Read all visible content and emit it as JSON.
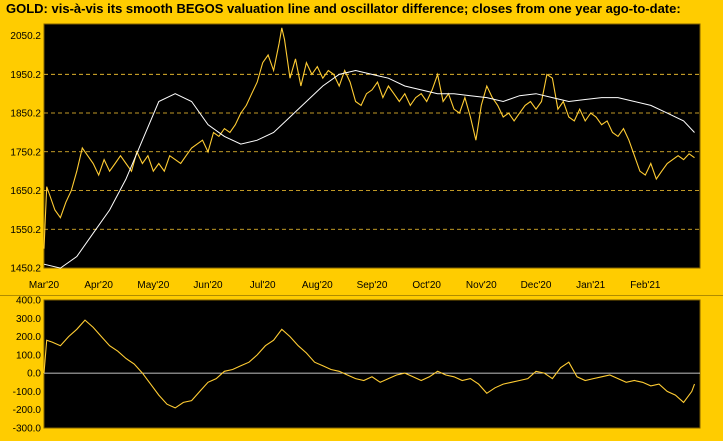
{
  "title": "GOLD:  vis-à-vis its smooth BEGOS valuation line and oscillator difference; closes from one year ago-to-date:",
  "colors": {
    "background": "#FFCC00",
    "plot_bg": "#000000",
    "price_line": "#FFCC33",
    "valuation_line": "#FFFFFF",
    "grid": "#FFCC33"
  },
  "chart_data": [
    {
      "type": "line",
      "name": "price-panel",
      "ylim": [
        1450.2,
        2080
      ],
      "yticks": [
        2050.2,
        1950.2,
        1850.2,
        1750.2,
        1650.2,
        1550.2,
        1450.2
      ],
      "ytick_labels": [
        "2050.2",
        "1950.2",
        "1850.2",
        "1750.2",
        "1650.2",
        "1550.2",
        "1450.2"
      ],
      "xlim": [
        0,
        12.0
      ],
      "xtick_labels": [
        "Mar'20",
        "Apr'20",
        "May'20",
        "Jun'20",
        "Jul'20",
        "Aug'20",
        "Sep'20",
        "Oct'20",
        "Nov'20",
        "Dec'20",
        "Jan'21",
        "Feb'21"
      ],
      "grid": "horizontal dashed",
      "series": [
        {
          "role": "price",
          "x": [
            0,
            0.05,
            0.1,
            0.2,
            0.3,
            0.4,
            0.5,
            0.6,
            0.7,
            0.8,
            0.9,
            1.0,
            1.1,
            1.2,
            1.3,
            1.4,
            1.5,
            1.6,
            1.7,
            1.8,
            1.9,
            2.0,
            2.1,
            2.2,
            2.3,
            2.4,
            2.5,
            2.6,
            2.7,
            2.8,
            2.9,
            3.0,
            3.1,
            3.2,
            3.3,
            3.4,
            3.5,
            3.6,
            3.7,
            3.8,
            3.9,
            4.0,
            4.1,
            4.2,
            4.3,
            4.35,
            4.4,
            4.5,
            4.6,
            4.7,
            4.8,
            4.9,
            5.0,
            5.1,
            5.2,
            5.3,
            5.4,
            5.5,
            5.6,
            5.7,
            5.8,
            5.9,
            6.0,
            6.1,
            6.2,
            6.3,
            6.4,
            6.5,
            6.6,
            6.7,
            6.8,
            6.9,
            7.0,
            7.1,
            7.2,
            7.3,
            7.4,
            7.5,
            7.6,
            7.7,
            7.8,
            7.9,
            8.0,
            8.1,
            8.2,
            8.3,
            8.4,
            8.5,
            8.6,
            8.7,
            8.8,
            8.9,
            9.0,
            9.1,
            9.2,
            9.3,
            9.4,
            9.5,
            9.6,
            9.7,
            9.8,
            9.9,
            10.0,
            10.1,
            10.2,
            10.3,
            10.4,
            10.5,
            10.6,
            10.7,
            10.8,
            10.9,
            11.0,
            11.1,
            11.2,
            11.3,
            11.4,
            11.5,
            11.6,
            11.7,
            11.8,
            11.9
          ],
          "values": [
            1500,
            1660,
            1640,
            1600,
            1580,
            1620,
            1650,
            1700,
            1760,
            1740,
            1720,
            1690,
            1730,
            1700,
            1720,
            1740,
            1720,
            1700,
            1750,
            1720,
            1740,
            1700,
            1720,
            1700,
            1740,
            1730,
            1720,
            1740,
            1760,
            1770,
            1780,
            1750,
            1800,
            1790,
            1810,
            1800,
            1820,
            1850,
            1870,
            1900,
            1930,
            1980,
            2000,
            1960,
            2030,
            2070,
            2040,
            1940,
            1990,
            1920,
            1980,
            1950,
            1970,
            1940,
            1960,
            1950,
            1920,
            1960,
            1930,
            1880,
            1870,
            1900,
            1910,
            1930,
            1890,
            1920,
            1900,
            1880,
            1900,
            1870,
            1890,
            1900,
            1880,
            1910,
            1950,
            1880,
            1900,
            1860,
            1850,
            1890,
            1840,
            1780,
            1870,
            1920,
            1890,
            1870,
            1840,
            1850,
            1830,
            1850,
            1870,
            1880,
            1860,
            1880,
            1950,
            1940,
            1860,
            1880,
            1840,
            1830,
            1860,
            1830,
            1850,
            1840,
            1820,
            1830,
            1800,
            1790,
            1810,
            1780,
            1740,
            1700,
            1690,
            1720,
            1680,
            1700,
            1720,
            1730,
            1740,
            1730,
            1745,
            1735
          ]
        },
        {
          "role": "valuation",
          "x": [
            0,
            0.3,
            0.6,
            0.9,
            1.2,
            1.5,
            1.8,
            2.1,
            2.4,
            2.7,
            3.0,
            3.3,
            3.6,
            3.9,
            4.2,
            4.5,
            4.8,
            5.1,
            5.4,
            5.7,
            6.0,
            6.3,
            6.6,
            6.9,
            7.2,
            7.5,
            7.8,
            8.1,
            8.4,
            8.7,
            9.0,
            9.3,
            9.6,
            9.9,
            10.2,
            10.5,
            10.8,
            11.1,
            11.4,
            11.7,
            11.9
          ],
          "values": [
            1460,
            1450,
            1480,
            1540,
            1600,
            1680,
            1780,
            1880,
            1900,
            1880,
            1820,
            1790,
            1770,
            1780,
            1800,
            1840,
            1880,
            1920,
            1950,
            1960,
            1950,
            1940,
            1920,
            1910,
            1900,
            1900,
            1895,
            1890,
            1880,
            1895,
            1900,
            1890,
            1880,
            1885,
            1890,
            1890,
            1880,
            1870,
            1850,
            1830,
            1800
          ]
        }
      ]
    },
    {
      "type": "line",
      "name": "oscillator-panel",
      "ylim": [
        -300,
        400
      ],
      "yticks": [
        400,
        300,
        200,
        100,
        0,
        -100,
        -200,
        -300
      ],
      "ytick_labels": [
        "400.0",
        "300.0",
        "200.0",
        "100.0",
        "0.0",
        "-100.0",
        "-200.0",
        "-300.0"
      ],
      "xlim": [
        0,
        12.0
      ],
      "series": [
        {
          "role": "oscillator",
          "x": [
            0,
            0.05,
            0.15,
            0.3,
            0.45,
            0.6,
            0.75,
            0.9,
            1.05,
            1.2,
            1.35,
            1.5,
            1.65,
            1.8,
            1.95,
            2.1,
            2.25,
            2.4,
            2.55,
            2.7,
            2.85,
            3.0,
            3.15,
            3.3,
            3.45,
            3.6,
            3.75,
            3.9,
            4.05,
            4.2,
            4.35,
            4.5,
            4.65,
            4.8,
            4.95,
            5.1,
            5.25,
            5.4,
            5.55,
            5.7,
            5.85,
            6.0,
            6.15,
            6.3,
            6.45,
            6.6,
            6.75,
            6.9,
            7.05,
            7.2,
            7.35,
            7.5,
            7.65,
            7.8,
            7.95,
            8.1,
            8.25,
            8.4,
            8.55,
            8.7,
            8.85,
            9.0,
            9.15,
            9.3,
            9.45,
            9.6,
            9.75,
            9.9,
            10.05,
            10.2,
            10.35,
            10.5,
            10.65,
            10.8,
            10.95,
            11.1,
            11.25,
            11.4,
            11.55,
            11.7,
            11.85,
            11.9
          ],
          "values": [
            0,
            180,
            170,
            150,
            200,
            240,
            290,
            250,
            200,
            150,
            120,
            80,
            50,
            0,
            -60,
            -120,
            -170,
            -190,
            -160,
            -150,
            -100,
            -50,
            -30,
            10,
            20,
            40,
            60,
            100,
            150,
            180,
            240,
            200,
            150,
            110,
            60,
            40,
            20,
            10,
            -10,
            -30,
            -40,
            -20,
            -50,
            -30,
            -10,
            0,
            -20,
            -40,
            -20,
            10,
            -10,
            -20,
            -40,
            -30,
            -60,
            -110,
            -80,
            -60,
            -50,
            -40,
            -30,
            10,
            0,
            -30,
            30,
            60,
            -20,
            -40,
            -30,
            -20,
            -10,
            -30,
            -50,
            -40,
            -50,
            -70,
            -60,
            -100,
            -120,
            -160,
            -100,
            -60
          ]
        }
      ]
    }
  ]
}
